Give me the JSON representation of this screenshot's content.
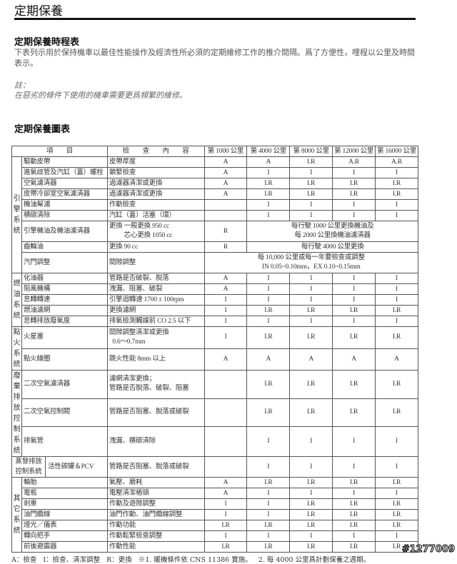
{
  "title": "定期保養",
  "schedule_heading": "定期保養時程表",
  "intro": "下表列示用於保持機車以最佳性能操作及經濟性所必須的定期維修工作的推介間隔。爲了方便性，哩程以公里及時間表示。",
  "note_label": "註：",
  "note_text": "在惡劣的條件下使用的機車需要更爲頻繁的維修。",
  "chart_heading": "定期保養圖表",
  "table": {
    "headers": [
      "項　　目",
      "檢　　查　　內　　容",
      "第 1000 公里",
      "第 4000 公里",
      "第 8000 公里",
      "第 12000 公里",
      "第 16000 公里"
    ],
    "groups": [
      {
        "label": "引擎系統",
        "rows": [
          {
            "item": "驅動皮帶",
            "check": "皮帶厚度",
            "values": [
              "A",
              "A",
              "I.R",
              "A.R",
              "A.R"
            ]
          },
          {
            "item": "進氣歧管及汽缸（蓋）螺栓",
            "check": "鎖緊檢查",
            "values": [
              "A",
              "I",
              "I",
              "I",
              "I"
            ]
          },
          {
            "item": "空氣濾清器",
            "check": "過濾器清潔或更換",
            "values": [
              "A",
              "I.R",
              "I.R",
              "I.R",
              "I.R"
            ]
          },
          {
            "item": "皮帶冷卻室空氣濾清器",
            "check": "過濾器清潔或更換",
            "values": [
              "A",
              "I.R",
              "I.R",
              "I.R",
              "I.R"
            ]
          },
          {
            "item": "機油幫浦",
            "check": "作動檢查",
            "values": [
              "",
              "I",
              "I",
              "I",
              "I"
            ]
          },
          {
            "item": "積碳清除",
            "check": "汽缸（蓋）活塞（環）",
            "values": [
              "",
              "I",
              "I",
              "I",
              "I"
            ]
          },
          {
            "item": "引擎機油及機油濾清器",
            "check": "更換 一般更換 950 cc\n　　 芯心更換 1050 cc",
            "values": [
              "R"
            ],
            "merged": "每行駛 1000 公里更換機油及\n每 2000 公里換機油濾清器",
            "tall": 1
          },
          {
            "item": "齒輪油",
            "check": "更換 90 cc",
            "values": [
              "R"
            ],
            "merged": "每行駛 4000 公里更換"
          },
          {
            "item": "汽門調整",
            "check": "間隙調整",
            "values": [],
            "merged": "每 10,000 公里或每一年要檢查或調整\nIN 0.05~0.10mm，EX 0.10~0.15mm",
            "tall": 1
          }
        ]
      },
      {
        "label": "燃油系統",
        "rows": [
          {
            "item": "化油器",
            "check": "管路是否破裂、脫落",
            "values": [
              "A",
              "I",
              "I",
              "I",
              "I"
            ]
          },
          {
            "item": "阻風機構",
            "check": "洩漏、阻塞、破裂",
            "values": [
              "A",
              "I",
              "I",
              "I",
              "I"
            ]
          },
          {
            "item": "怠轉轉速",
            "check": "引擎迴轉速 1700 ± 100rpm",
            "values": [
              "I",
              "I",
              "I",
              "I",
              "I"
            ]
          },
          {
            "item": "燃油濾網",
            "check": "更換濾網",
            "values": [
              "I",
              "I.R",
              "I.R",
              "I.R",
              "I.R"
            ]
          },
          {
            "item": "怠轉排放廢氣度",
            "check": "排氣檢測觸媒前 CO 2.5 以下",
            "values": [
              "I",
              "I",
              "I",
              "I",
              "I"
            ]
          }
        ]
      },
      {
        "label": "點火系統",
        "rows": [
          {
            "item": "火星塞",
            "check": "間隙調整清潔或更換\n  0.6～0.7mm",
            "values": [
              "I",
              "I.R",
              "I.R",
              "I.R",
              "I.R"
            ],
            "tall": 1
          },
          {
            "item": "點火線圈",
            "check": "跳火性能 8mm 以上",
            "values": [
              "A",
              "A",
              "A",
              "A",
              "A"
            ],
            "tall": 1
          }
        ]
      },
      {
        "label": "廢棄排放控制系統",
        "rows": [
          {
            "item": "二次空氣濾清器",
            "check": "濾網清潔更換；\n管路是否脫落、破裂、阻塞",
            "values": [
              "",
              "I.R",
              "I.R",
              "I.R",
              "I.R"
            ],
            "tall": 2
          },
          {
            "item": "二次空氣控制閥",
            "check": "管路是否阻塞、脫落或破裂",
            "values": [
              "",
              "I.R",
              "I.R",
              "I.R",
              "I.R"
            ],
            "tall": 2
          },
          {
            "item": "排氣管",
            "check": "洩漏、積碳清除",
            "values": [
              "",
              "I",
              "I",
              "I",
              "I"
            ],
            "tall": 3
          }
        ]
      },
      {
        "label": "蒸發排放控制系統",
        "evap": true,
        "rows": [
          {
            "item": "活性碳罐＆PCV",
            "check": "管路是否阻塞、脫落或破裂",
            "values": [
              "",
              "I",
              "I",
              "I",
              "I"
            ],
            "tall": 1
          }
        ]
      },
      {
        "label": "其它系統",
        "rows": [
          {
            "item": "輪胎",
            "check": "氣壓、磨耗",
            "values": [
              "A",
              "I.R",
              "I.R",
              "I.R",
              "I.R"
            ]
          },
          {
            "item": "電瓶",
            "check": "電壓清潔樁頭",
            "values": [
              "A",
              "I",
              "I",
              "I",
              "I"
            ]
          },
          {
            "item": "剎車",
            "check": "作動及遊隙調整",
            "values": [
              "I",
              "I",
              "I.R",
              "I.R",
              "I.R"
            ]
          },
          {
            "item": "油門纜線",
            "check": "油門作動、油門纜線調整",
            "values": [
              "I",
              "I",
              "I.R",
              "I.R",
              "I.R"
            ]
          },
          {
            "item": "燈光／儀表",
            "check": "作動功能",
            "values": [
              "I.R",
              "I.R",
              "I.R",
              "I.R",
              "I.R"
            ]
          },
          {
            "item": "轉向把手",
            "check": "作動鬆緊檢查調整",
            "values": [
              "I",
              "I",
              "I",
              "I",
              "I"
            ]
          },
          {
            "item": "前後避震器",
            "check": "作動性能",
            "values": [
              "I.R",
              "I.R",
              "I.R",
              "I.R",
              "I.R"
            ]
          }
        ]
      }
    ]
  },
  "footer": {
    "legend_a": "A：檢查",
    "legend_i": "I：檢查、清潔調整",
    "legend_r": "R：更換",
    "note1": "※1. 暖機條件依 CNS 11386 實施。",
    "note2": "2. 每 4000 公里爲計劃保養之週期。"
  },
  "watermark": "#1277009"
}
